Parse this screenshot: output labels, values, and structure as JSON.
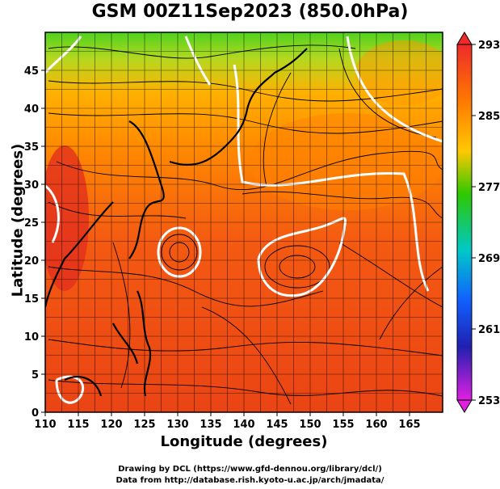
{
  "title": "GSM 00Z11Sep2023 (850.0hPa)",
  "x_axis": {
    "label": "Longitude (degrees)",
    "range": [
      110,
      170
    ],
    "ticks": [
      "110",
      "115",
      "120",
      "125",
      "130",
      "135",
      "140",
      "145",
      "150",
      "155",
      "160",
      "165"
    ]
  },
  "y_axis": {
    "label": "Latitude  (degrees)",
    "range": [
      0,
      50
    ],
    "ticks": [
      "0",
      "5",
      "10",
      "15",
      "20",
      "25",
      "30",
      "35",
      "40",
      "45"
    ]
  },
  "colorbar": {
    "ticks": [
      "293",
      "285",
      "277",
      "269",
      "261",
      "253"
    ],
    "colors": [
      "#e0102a",
      "#ff6a00",
      "#ffc400",
      "#19c400",
      "#00c8b4",
      "#1096ff",
      "#1a2ec8",
      "#7a0fc8",
      "#e61ee6"
    ]
  },
  "credits": {
    "line1": "Drawing by DCL (https://www.gfd-dennou.org/library/dcl/)",
    "line2": "Data from http://database.rish.kyoto-u.ac.jp/arch/jmadata/"
  }
}
